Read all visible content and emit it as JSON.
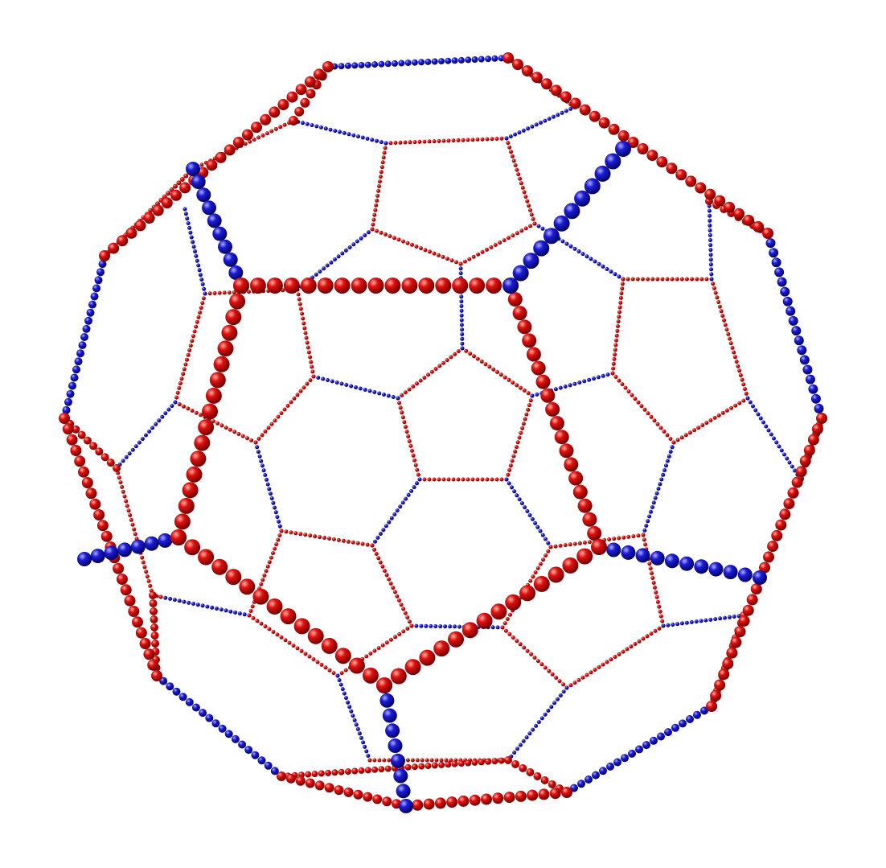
{
  "scene": {
    "subject": "fullerene-bead-cage",
    "background": "#ffffff",
    "colors": {
      "red": "#d80000",
      "red_dark": "#6a0000",
      "red_light": "#ffb0a0",
      "blue": "#1a1ad0",
      "blue_dark": "#000060",
      "blue_light": "#a8a8ff"
    }
  }
}
